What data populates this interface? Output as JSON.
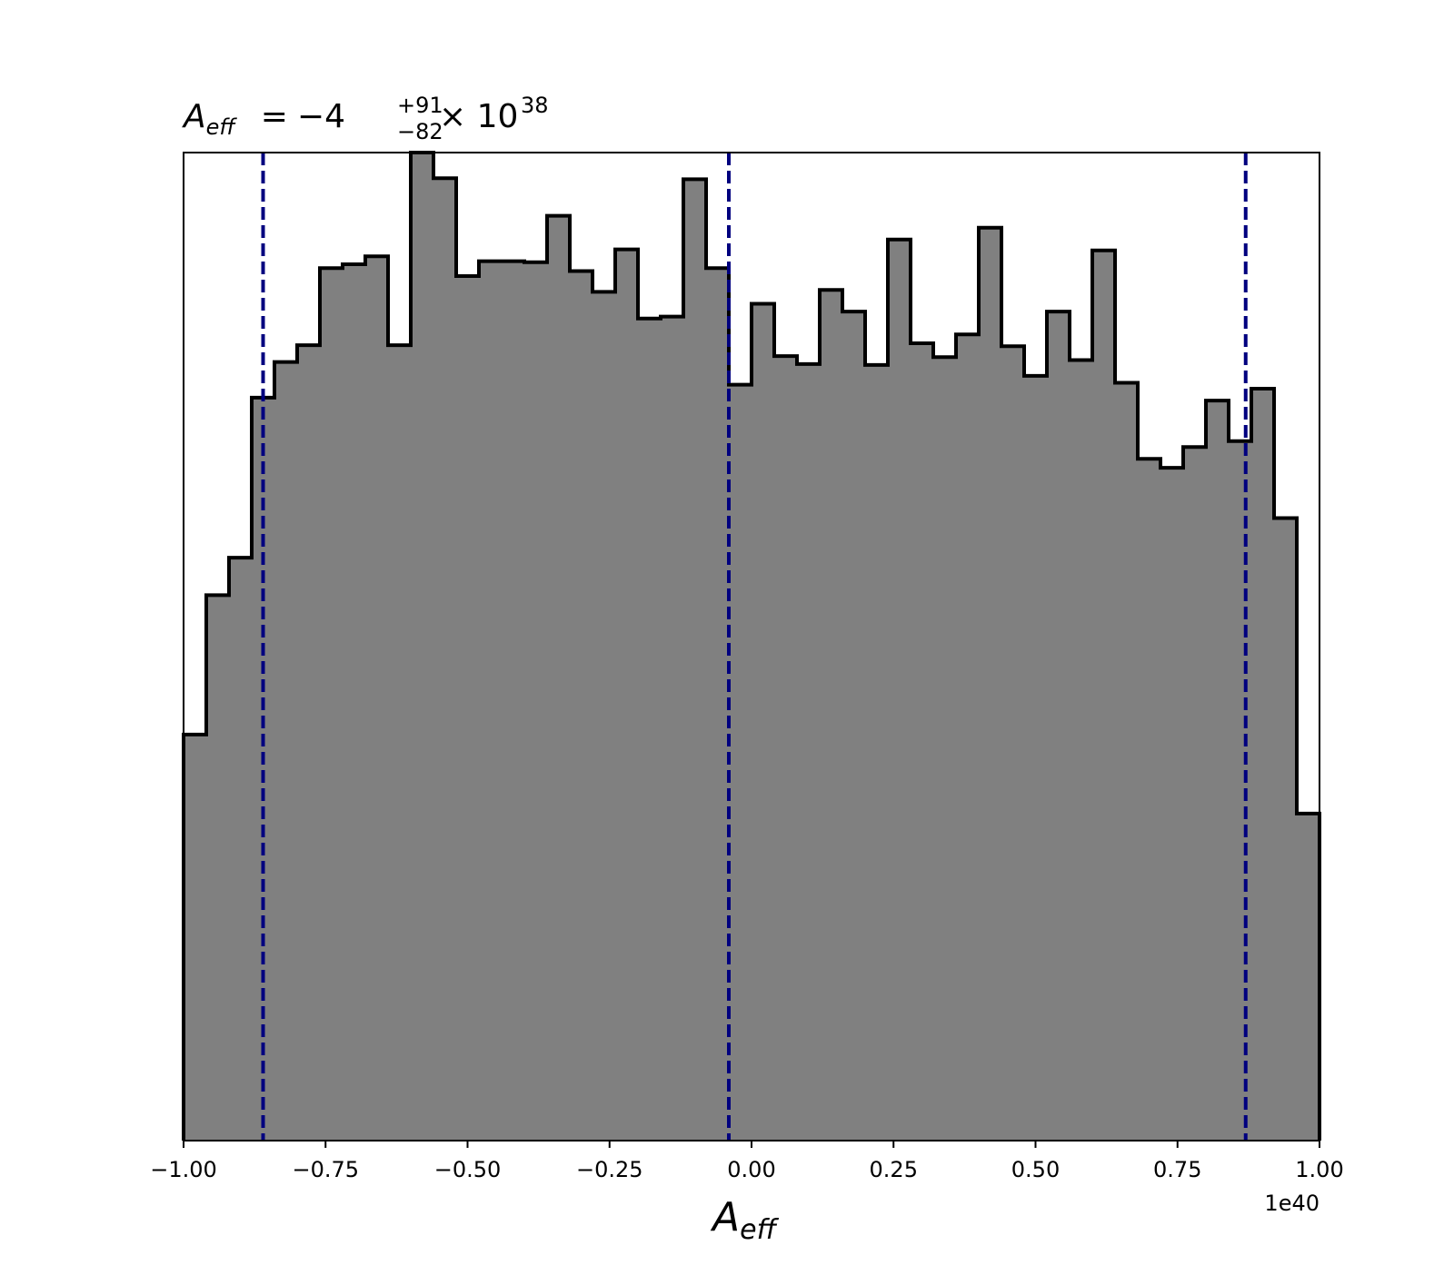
{
  "chart_data": {
    "type": "histogram",
    "title": {
      "symbol": "A",
      "symbol_sub": "eff",
      "median": "−4",
      "err_plus": "+91",
      "err_minus": "−82",
      "multiplier": "× 10",
      "exponent": "38"
    },
    "xlabel": {
      "symbol": "A",
      "sub": "eff"
    },
    "ylabel": "",
    "offset_text": "1e40",
    "xlim": [
      -1.0,
      1.0
    ],
    "ylim": [
      0,
      1.0
    ],
    "grid": false,
    "show_yticks": false,
    "x_ticks": [
      {
        "value": -1.0,
        "label": "−1.00"
      },
      {
        "value": -0.75,
        "label": "−0.75"
      },
      {
        "value": -0.5,
        "label": "−0.50"
      },
      {
        "value": -0.25,
        "label": "−0.25"
      },
      {
        "value": 0.0,
        "label": "0.00"
      },
      {
        "value": 0.25,
        "label": "0.25"
      },
      {
        "value": 0.5,
        "label": "0.50"
      },
      {
        "value": 0.75,
        "label": "0.75"
      },
      {
        "value": 1.0,
        "label": "1.00"
      }
    ],
    "bin_range": [
      -1.0,
      1.0
    ],
    "bin_count": 50,
    "bin_heights": [
      0.411,
      0.552,
      0.59,
      0.752,
      0.788,
      0.805,
      0.883,
      0.887,
      0.895,
      0.805,
      1.0,
      0.974,
      0.875,
      0.89,
      0.89,
      0.889,
      0.936,
      0.88,
      0.859,
      0.902,
      0.832,
      0.834,
      0.973,
      0.883,
      0.765,
      0.847,
      0.794,
      0.786,
      0.861,
      0.839,
      0.785,
      0.912,
      0.807,
      0.793,
      0.816,
      0.924,
      0.804,
      0.774,
      0.839,
      0.79,
      0.901,
      0.767,
      0.69,
      0.681,
      0.702,
      0.749,
      0.708,
      0.761,
      0.63,
      0.331
    ],
    "vlines": [
      -0.86,
      -0.04,
      0.87
    ],
    "colors": {
      "fill": "#808080",
      "edge": "#000000",
      "vline": "#00007f",
      "axes": "#000000",
      "background": "#ffffff"
    }
  }
}
